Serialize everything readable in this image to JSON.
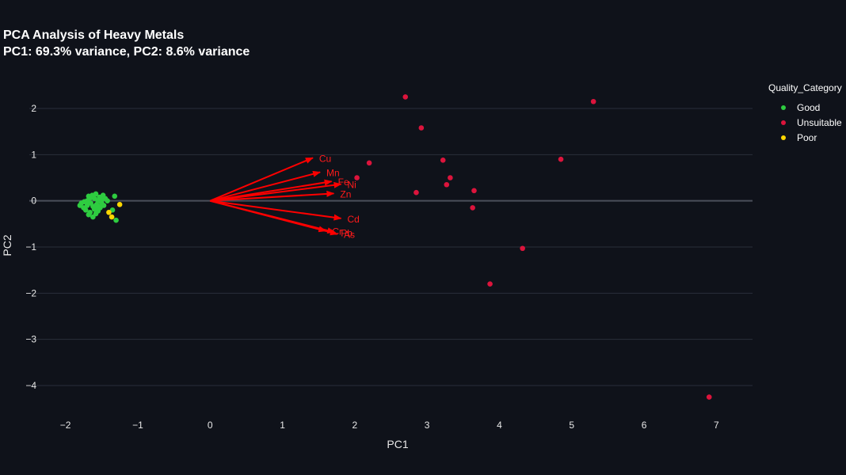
{
  "chart_data": {
    "type": "scatter",
    "title": "PCA Analysis of Heavy Metals",
    "subtitle": "PC1: 69.3% variance, PC2: 8.6% variance",
    "xlabel": "PC1",
    "ylabel": "PC2",
    "xlim": [
      -2.5,
      7.5
    ],
    "ylim": [
      -4.6,
      2.6
    ],
    "x_ticks": [
      -2,
      -1,
      0,
      1,
      2,
      3,
      4,
      5,
      6,
      7
    ],
    "y_ticks": [
      2,
      1,
      0,
      -1,
      -2,
      -3,
      -4
    ],
    "x_tick_labels": [
      "−2",
      "−1",
      "0",
      "1",
      "2",
      "3",
      "4",
      "5",
      "6",
      "7"
    ],
    "y_tick_labels": [
      "2",
      "1",
      "0",
      "−1",
      "−2",
      "−3",
      "−4"
    ],
    "grid": true,
    "legend_title": "Quality_Category",
    "legend_position": "top-right",
    "series": [
      {
        "name": "Good",
        "color": "#2ecc40",
        "points": [
          [
            -1.8,
            -0.1
          ],
          [
            -1.78,
            -0.05
          ],
          [
            -1.75,
            -0.15
          ],
          [
            -1.72,
            -0.2
          ],
          [
            -1.7,
            0.0
          ],
          [
            -1.7,
            -0.1
          ],
          [
            -1.68,
            0.1
          ],
          [
            -1.66,
            -0.25
          ],
          [
            -1.65,
            -0.05
          ],
          [
            -1.63,
            0.12
          ],
          [
            -1.62,
            -0.12
          ],
          [
            -1.6,
            0.05
          ],
          [
            -1.6,
            -0.18
          ],
          [
            -1.58,
            0.15
          ],
          [
            -1.57,
            -0.08
          ],
          [
            -1.55,
            0.0
          ],
          [
            -1.55,
            -0.22
          ],
          [
            -1.53,
            0.08
          ],
          [
            -1.52,
            -0.15
          ],
          [
            -1.5,
            -0.05
          ],
          [
            -1.5,
            0.02
          ],
          [
            -1.48,
            0.12
          ],
          [
            -1.47,
            -0.1
          ],
          [
            -1.45,
            0.05
          ],
          [
            -1.42,
            0.0
          ],
          [
            -1.35,
            -0.2
          ],
          [
            -1.32,
            0.1
          ],
          [
            -1.3,
            -0.42
          ],
          [
            -1.62,
            -0.35
          ],
          [
            -1.58,
            -0.28
          ],
          [
            -1.66,
            0.06
          ],
          [
            -1.74,
            -0.02
          ],
          [
            -1.68,
            -0.3
          ],
          [
            -1.55,
            -0.12
          ]
        ]
      },
      {
        "name": "Unsuitable",
        "color": "#dc143c",
        "points": [
          [
            2.7,
            2.25
          ],
          [
            5.3,
            2.15
          ],
          [
            2.92,
            1.58
          ],
          [
            2.2,
            0.82
          ],
          [
            3.22,
            0.88
          ],
          [
            4.85,
            0.9
          ],
          [
            2.03,
            0.5
          ],
          [
            3.32,
            0.5
          ],
          [
            3.27,
            0.35
          ],
          [
            3.65,
            0.22
          ],
          [
            2.85,
            0.18
          ],
          [
            3.63,
            -0.15
          ],
          [
            4.32,
            -1.03
          ],
          [
            3.87,
            -1.8
          ],
          [
            6.9,
            -4.25
          ]
        ]
      },
      {
        "name": "Poor",
        "color": "#ffd700",
        "points": [
          [
            -1.25,
            -0.08
          ],
          [
            -1.4,
            -0.25
          ],
          [
            -1.36,
            -0.35
          ]
        ]
      }
    ],
    "loadings": [
      {
        "name": "Cu",
        "x": 1.42,
        "y": 0.93
      },
      {
        "name": "Mn",
        "x": 1.52,
        "y": 0.62
      },
      {
        "name": "Fe",
        "x": 1.68,
        "y": 0.42
      },
      {
        "name": "Ni",
        "x": 1.81,
        "y": 0.36
      },
      {
        "name": "Zn",
        "x": 1.71,
        "y": 0.16
      },
      {
        "name": "Cd",
        "x": 1.81,
        "y": -0.38
      },
      {
        "name": "Cr",
        "x": 1.6,
        "y": -0.65
      },
      {
        "name": "Pb",
        "x": 1.72,
        "y": -0.68
      },
      {
        "name": "As",
        "x": 1.76,
        "y": -0.72
      }
    ]
  }
}
